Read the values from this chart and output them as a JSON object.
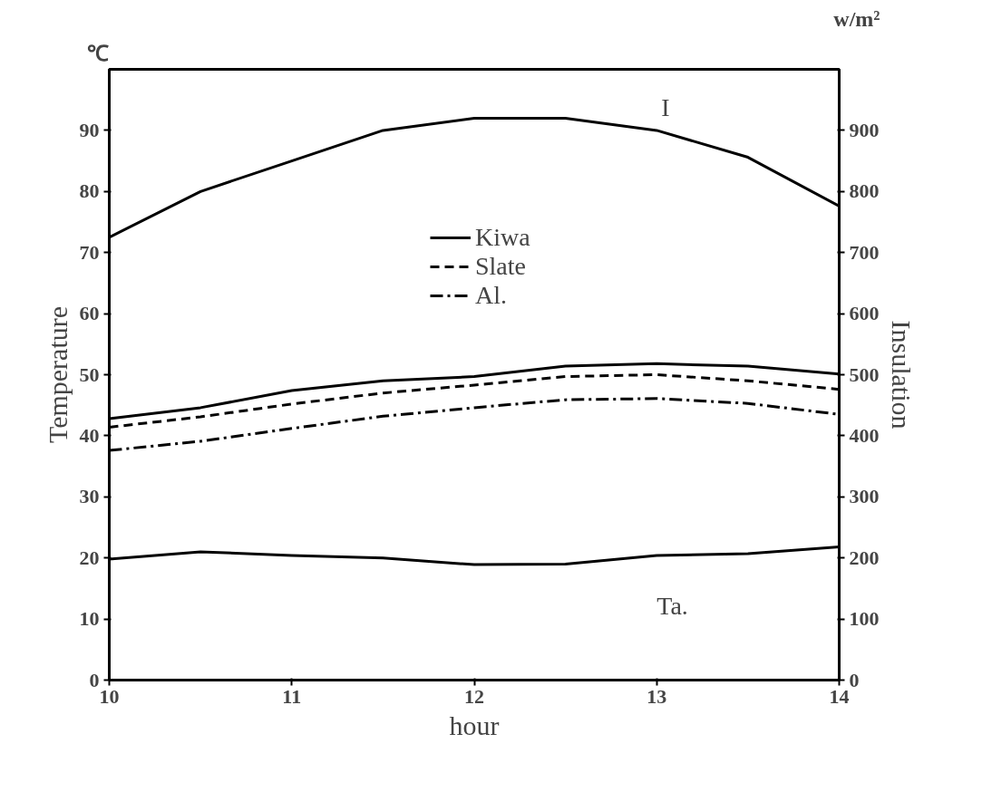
{
  "chart_data": {
    "type": "line",
    "xlabel": "hour",
    "ylabel": "Temperature",
    "y2label": "Insulation",
    "x": [
      10,
      10.5,
      11,
      11.5,
      12,
      12.5,
      13,
      13.5,
      14
    ],
    "series": [
      {
        "name": "I",
        "color": "#000000",
        "axis": "y2",
        "line_style": "solid",
        "values": [
          725,
          800,
          850,
          900,
          920,
          920,
          900,
          856,
          776
        ]
      },
      {
        "name": "Kiwa",
        "color": "#000000",
        "line_style": "solid",
        "values": [
          42.8,
          44.6,
          47.4,
          49,
          49.7,
          51.4,
          51.8,
          51.4,
          50.1
        ]
      },
      {
        "name": "Slate",
        "color": "#000000",
        "line_style": "dashed",
        "values": [
          41.4,
          43.1,
          45.2,
          47,
          48.3,
          49.7,
          50,
          49,
          47.6
        ]
      },
      {
        "name": "Al.",
        "color": "#000000",
        "line_style": "dashdot",
        "values": [
          37.6,
          39.1,
          41.2,
          43.2,
          44.6,
          45.9,
          46.1,
          45.3,
          43.5
        ]
      },
      {
        "name": "Ta.",
        "color": "#000000",
        "line_style": "solid",
        "values": [
          19.8,
          21,
          20.4,
          20,
          18.9,
          19,
          20.4,
          20.7,
          21.8
        ]
      }
    ],
    "xlim": [
      10,
      14
    ],
    "xticks": [
      10,
      11,
      12,
      13,
      14
    ],
    "ylim": [
      0,
      100
    ],
    "yticks": [
      0,
      10,
      20,
      30,
      40,
      50,
      60,
      70,
      80,
      90
    ],
    "y2lim": [
      0,
      1000
    ],
    "y2ticks": [
      0,
      100,
      200,
      300,
      400,
      500,
      600,
      700,
      800,
      900
    ],
    "grid": false,
    "legend": "center",
    "marker": "none",
    "annotations": [
      "℃",
      "w/m²"
    ]
  }
}
